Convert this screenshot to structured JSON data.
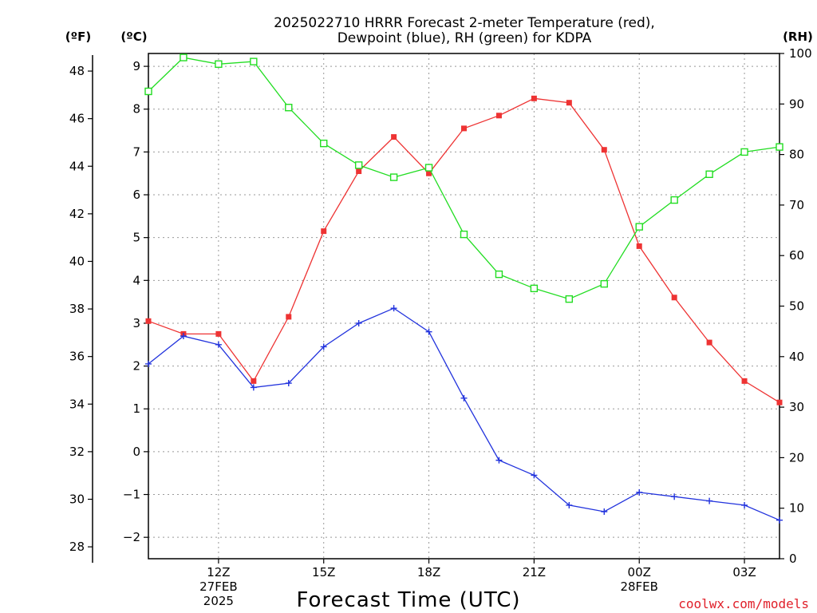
{
  "chart_data": {
    "type": "line",
    "title_lines": [
      "2025022710 HRRR Forecast 2-meter Temperature (red),",
      "Dewpoint (blue), RH (green) for KDPA"
    ],
    "unit_labels": {
      "fahrenheit": "(ºF)",
      "celsius": "(ºC)",
      "rh": "(RH)"
    },
    "xlabel": "Forecast Time (UTC)",
    "credit": "coolwx.com/models",
    "x_hours": [
      10,
      11,
      12,
      13,
      14,
      15,
      16,
      17,
      18,
      19,
      20,
      21,
      22,
      23,
      24,
      25,
      26,
      27,
      28
    ],
    "xlim": [
      10,
      28
    ],
    "x_ticks": [
      {
        "hour": 12,
        "lines": [
          "12Z",
          "27FEB",
          "2025"
        ]
      },
      {
        "hour": 15,
        "lines": [
          "15Z"
        ]
      },
      {
        "hour": 18,
        "lines": [
          "18Z"
        ]
      },
      {
        "hour": 21,
        "lines": [
          "21Z"
        ]
      },
      {
        "hour": 24,
        "lines": [
          "00Z",
          "28FEB"
        ]
      },
      {
        "hour": 27,
        "lines": [
          "03Z"
        ]
      }
    ],
    "y_celsius": {
      "lim": [
        -2.5,
        9.3
      ],
      "ticks": [
        9,
        8,
        7,
        6,
        5,
        4,
        3,
        2,
        1,
        0,
        -1,
        -2
      ],
      "tick_labels": [
        "9",
        "8",
        "7",
        "6",
        "5",
        "4",
        "3",
        "2",
        "1",
        "0",
        "−1",
        "−2"
      ]
    },
    "y_fahrenheit": {
      "ticks": [
        48,
        46,
        44,
        42,
        40,
        38,
        36,
        34,
        32,
        30,
        28
      ],
      "tick_labels": [
        "48",
        "46",
        "44",
        "42",
        "40",
        "38",
        "36",
        "34",
        "32",
        "30",
        "28"
      ]
    },
    "y_rh": {
      "lim": [
        0,
        100
      ],
      "ticks": [
        100,
        90,
        80,
        70,
        60,
        50,
        40,
        30,
        20,
        10,
        0
      ],
      "tick_labels": [
        "100",
        "90",
        "80",
        "70",
        "60",
        "50",
        "40",
        "30",
        "20",
        "10",
        "0"
      ]
    },
    "grid": true,
    "series": [
      {
        "axis": "celsius",
        "color": "#ee3333",
        "marker": "filled-square",
        "values": [
          3.05,
          2.75,
          2.75,
          1.65,
          3.15,
          5.15,
          6.55,
          7.35,
          6.5,
          7.55,
          7.85,
          8.25,
          8.15,
          7.05,
          4.8,
          3.6,
          2.55,
          1.65,
          1.15
        ]
      },
      {
        "axis": "celsius",
        "color": "#2233dd",
        "marker": "plus",
        "values": [
          2.05,
          2.7,
          2.5,
          1.5,
          1.6,
          2.45,
          3.0,
          3.35,
          2.8,
          1.25,
          -0.2,
          -0.55,
          -1.25,
          -1.4,
          -0.95,
          -1.05,
          -1.15,
          -1.25,
          -1.6
        ]
      },
      {
        "axis": "rh",
        "color": "#22dd22",
        "marker": "open-square",
        "values": [
          92.5,
          99.2,
          97.9,
          98.4,
          89.3,
          82.2,
          77.9,
          75.5,
          77.4,
          64.2,
          56.3,
          53.5,
          51.4,
          54.4,
          65.7,
          71.0,
          76.1,
          80.5,
          81.5
        ]
      }
    ]
  }
}
